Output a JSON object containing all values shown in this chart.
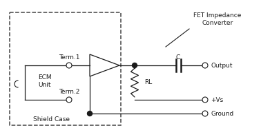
{
  "bg_color": "#ffffff",
  "line_color": "#1a1a1a",
  "dashed_color": "#444444",
  "labels": {
    "term1": "Term.1",
    "term2": "Term.2",
    "ecm": "ECM\nUnit",
    "shield": "Shield Case",
    "fet": "FET Impedance\nConverter",
    "C": "C",
    "RL": "RL",
    "output": "Output",
    "vs": "+Vs",
    "ground": "Ground"
  },
  "figsize": [
    3.78,
    2.02
  ],
  "dpi": 100
}
